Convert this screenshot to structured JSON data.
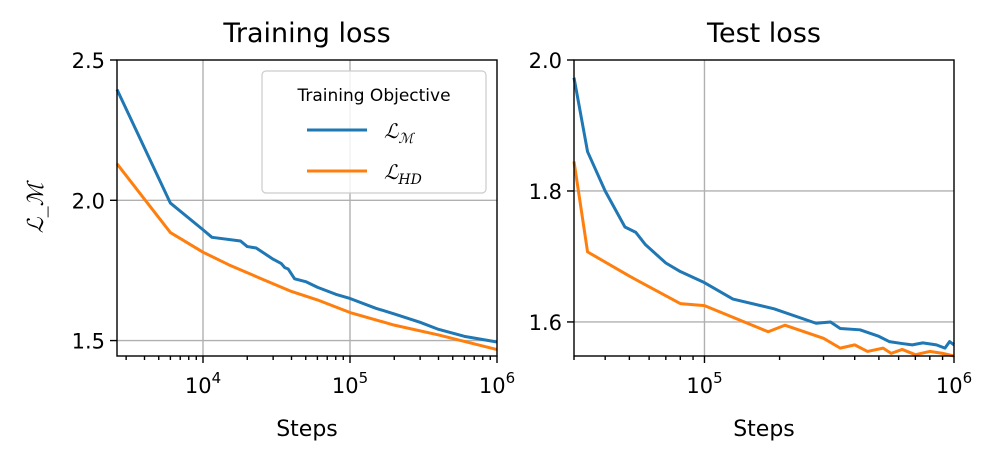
{
  "chart_data": [
    {
      "type": "line",
      "title": "Training loss",
      "xlabel": "Steps",
      "ylabel": "ℒ_ℳ",
      "xscale": "log",
      "xlim": [
        2600,
        1000000
      ],
      "ylim": [
        1.445,
        2.5
      ],
      "grid": true,
      "xticks": [
        {
          "value": 10000,
          "base": "10",
          "exp": "4"
        },
        {
          "value": 100000,
          "base": "10",
          "exp": "5"
        },
        {
          "value": 1000000,
          "base": "10",
          "exp": "6"
        }
      ],
      "yticks": [
        {
          "value": 2.5,
          "label": "2.5"
        },
        {
          "value": 2.0,
          "label": "2.0"
        },
        {
          "value": 1.5,
          "label": "1.5"
        }
      ],
      "legend": {
        "title": "Training Objective",
        "placement": "top-right",
        "entries": [
          {
            "label": "ℒ",
            "sub": "ℳ",
            "color": "#1f77b4"
          },
          {
            "label": "ℒ",
            "sub": "HD",
            "color": "#ff7f0e"
          }
        ]
      },
      "series": [
        {
          "name": "L_M",
          "color": "#1f77b4",
          "points": [
            [
              2600,
              2.395
            ],
            [
              6000,
              1.99
            ],
            [
              10000,
              1.895
            ],
            [
              11500,
              1.868
            ],
            [
              18000,
              1.855
            ],
            [
              20000,
              1.835
            ],
            [
              23000,
              1.83
            ],
            [
              30000,
              1.79
            ],
            [
              34000,
              1.775
            ],
            [
              36000,
              1.76
            ],
            [
              38000,
              1.755
            ],
            [
              42000,
              1.72
            ],
            [
              50000,
              1.71
            ],
            [
              60000,
              1.69
            ],
            [
              80000,
              1.665
            ],
            [
              100000,
              1.65
            ],
            [
              150000,
              1.615
            ],
            [
              200000,
              1.595
            ],
            [
              300000,
              1.565
            ],
            [
              400000,
              1.54
            ],
            [
              600000,
              1.515
            ],
            [
              1000000,
              1.495
            ]
          ]
        },
        {
          "name": "L_HD",
          "color": "#ff7f0e",
          "points": [
            [
              2600,
              2.13
            ],
            [
              6000,
              1.885
            ],
            [
              10000,
              1.815
            ],
            [
              15000,
              1.77
            ],
            [
              25000,
              1.72
            ],
            [
              40000,
              1.675
            ],
            [
              60000,
              1.645
            ],
            [
              100000,
              1.6
            ],
            [
              200000,
              1.555
            ],
            [
              400000,
              1.52
            ],
            [
              600000,
              1.497
            ],
            [
              1000000,
              1.468
            ]
          ]
        }
      ]
    },
    {
      "type": "line",
      "title": "Test loss",
      "xlabel": "Steps",
      "xscale": "log",
      "xlim": [
        30000,
        1000000
      ],
      "ylim": [
        1.548,
        2.0
      ],
      "grid": true,
      "xticks": [
        {
          "value": 100000,
          "base": "10",
          "exp": "5"
        },
        {
          "value": 1000000,
          "base": "10",
          "exp": "6"
        }
      ],
      "yticks": [
        {
          "value": 2.0,
          "label": "2.0"
        },
        {
          "value": 1.8,
          "label": "1.8"
        },
        {
          "value": 1.6,
          "label": "1.6"
        }
      ],
      "series": [
        {
          "name": "L_M",
          "color": "#1f77b4",
          "points": [
            [
              30000,
              1.973
            ],
            [
              34000,
              1.86
            ],
            [
              40000,
              1.8
            ],
            [
              48000,
              1.745
            ],
            [
              53000,
              1.737
            ],
            [
              58000,
              1.718
            ],
            [
              70000,
              1.69
            ],
            [
              80000,
              1.677
            ],
            [
              100000,
              1.66
            ],
            [
              130000,
              1.635
            ],
            [
              190000,
              1.62
            ],
            [
              280000,
              1.598
            ],
            [
              320000,
              1.6
            ],
            [
              350000,
              1.59
            ],
            [
              420000,
              1.588
            ],
            [
              500000,
              1.578
            ],
            [
              550000,
              1.57
            ],
            [
              620000,
              1.567
            ],
            [
              680000,
              1.565
            ],
            [
              750000,
              1.568
            ],
            [
              850000,
              1.565
            ],
            [
              920000,
              1.56
            ],
            [
              960000,
              1.57
            ],
            [
              1000000,
              1.565
            ]
          ]
        },
        {
          "name": "L_HD",
          "color": "#ff7f0e",
          "points": [
            [
              30000,
              1.845
            ],
            [
              34000,
              1.707
            ],
            [
              50000,
              1.67
            ],
            [
              80000,
              1.628
            ],
            [
              100000,
              1.625
            ],
            [
              180000,
              1.585
            ],
            [
              210000,
              1.595
            ],
            [
              300000,
              1.575
            ],
            [
              350000,
              1.56
            ],
            [
              400000,
              1.565
            ],
            [
              450000,
              1.555
            ],
            [
              520000,
              1.56
            ],
            [
              560000,
              1.552
            ],
            [
              620000,
              1.558
            ],
            [
              700000,
              1.55
            ],
            [
              800000,
              1.555
            ],
            [
              900000,
              1.552
            ],
            [
              1000000,
              1.548
            ]
          ]
        }
      ]
    }
  ]
}
